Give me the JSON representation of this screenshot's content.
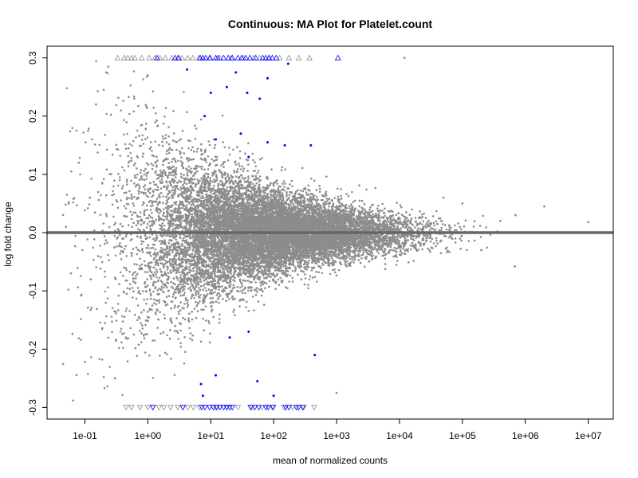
{
  "chart_data": {
    "type": "scatter",
    "title": "Continuous: MA Plot for Platelet.count",
    "xlabel": "mean of normalized counts",
    "ylabel": "log fold change",
    "x_scale": "log10",
    "xlim": [
      0.025,
      25000000
    ],
    "ylim": [
      -0.32,
      0.32
    ],
    "x_tick_labels": [
      "1e-01",
      "1e+00",
      "1e+01",
      "1e+02",
      "1e+03",
      "1e+04",
      "1e+05",
      "1e+06",
      "1e+07"
    ],
    "y_tick_labels": [
      "-0.3",
      "-0.2",
      "-0.1",
      "0.0",
      "0.1",
      "0.2",
      "0.3"
    ],
    "reference_line": {
      "y": 0,
      "color": "#666666"
    },
    "colors": {
      "nonsignificant": "#8c8c8c",
      "significant": "#0000ff"
    },
    "grid": false,
    "series": [
      {
        "role": "genes (dense cloud, approx. 20,000 points)",
        "color": "#8c8c8c",
        "sample_points": [
          {
            "x": 0.05,
            "y": 0.01
          },
          {
            "x": 0.06,
            "y": -0.07
          },
          {
            "x": 0.08,
            "y": 0.12
          },
          {
            "x": 0.12,
            "y": 0.06
          },
          {
            "x": 0.15,
            "y": 0.22
          },
          {
            "x": 0.3,
            "y": -0.25
          },
          {
            "x": 1.0,
            "y": 0.27
          },
          {
            "x": 8.0,
            "y": 0.0
          },
          {
            "x": 100,
            "y": 0.0
          },
          {
            "x": 1000,
            "y": 0.02
          },
          {
            "x": 10000,
            "y": -0.02
          },
          {
            "x": 50000,
            "y": 0.06
          },
          {
            "x": 100000,
            "y": 0.05
          },
          {
            "x": 200000,
            "y": -0.03
          },
          {
            "x": 400000,
            "y": 0.02
          },
          {
            "x": 700000,
            "y": 0.03
          },
          {
            "x": 2000000,
            "y": 0.045
          },
          {
            "x": 10000000,
            "y": 0.018
          },
          {
            "x": 680000,
            "y": -0.058
          },
          {
            "x": 12000,
            "y": 0.3
          },
          {
            "x": 1000,
            "y": -0.275
          }
        ]
      },
      {
        "role": "significant genes",
        "color": "#0000ff",
        "points": [
          {
            "x": 4.2,
            "y": 0.28
          },
          {
            "x": 8.0,
            "y": 0.2
          },
          {
            "x": 10,
            "y": 0.24
          },
          {
            "x": 18,
            "y": 0.25
          },
          {
            "x": 25,
            "y": 0.275
          },
          {
            "x": 38,
            "y": 0.24
          },
          {
            "x": 60,
            "y": 0.23
          },
          {
            "x": 80,
            "y": 0.265
          },
          {
            "x": 30,
            "y": 0.17
          },
          {
            "x": 170,
            "y": 0.29
          },
          {
            "x": 150,
            "y": 0.15
          },
          {
            "x": 390,
            "y": 0.15
          },
          {
            "x": 40,
            "y": 0.13
          },
          {
            "x": 12,
            "y": 0.16
          },
          {
            "x": 80,
            "y": 0.155
          },
          {
            "x": 7.0,
            "y": -0.26
          },
          {
            "x": 7.5,
            "y": -0.28
          },
          {
            "x": 12,
            "y": -0.245
          },
          {
            "x": 20,
            "y": -0.18
          },
          {
            "x": 40,
            "y": -0.17
          },
          {
            "x": 55,
            "y": -0.255
          },
          {
            "x": 100,
            "y": -0.28
          },
          {
            "x": 450,
            "y": -0.21
          }
        ]
      },
      {
        "role": "clipped above 0.3 (open up-triangles)",
        "marker": "triangle-up",
        "y": 0.3,
        "grey_x": [
          0.33,
          0.42,
          0.48,
          0.55,
          0.62,
          0.8,
          1.05,
          1.3,
          1.55,
          1.9,
          2.4,
          3.0,
          3.5,
          4.3,
          5.2,
          6.5,
          9.5,
          14,
          21,
          33,
          48,
          60,
          85,
          125,
          175,
          250,
          370
        ],
        "blue_x": [
          1.4,
          2.7,
          3.1,
          6.8,
          7.5,
          8.3,
          9.8,
          12,
          13,
          16,
          19,
          22,
          27,
          31,
          36,
          42,
          52,
          67,
          75,
          84,
          95,
          110,
          1050
        ]
      },
      {
        "role": "clipped below -0.3 (open down-triangles)",
        "marker": "triangle-down",
        "y": -0.3,
        "grey_x": [
          0.45,
          0.55,
          0.75,
          1.0,
          1.2,
          1.5,
          1.8,
          2.3,
          3.0,
          3.6,
          4.3,
          5.3,
          6.6,
          12,
          18,
          27,
          45,
          65,
          95,
          145,
          200,
          300,
          440
        ],
        "blue_x": [
          1.2,
          3.6,
          7.2,
          8.1,
          9.6,
          11,
          12.5,
          14,
          16,
          18,
          20,
          22,
          43,
          50,
          58,
          75,
          82,
          98,
          155,
          175,
          230,
          250,
          290
        ]
      }
    ]
  }
}
